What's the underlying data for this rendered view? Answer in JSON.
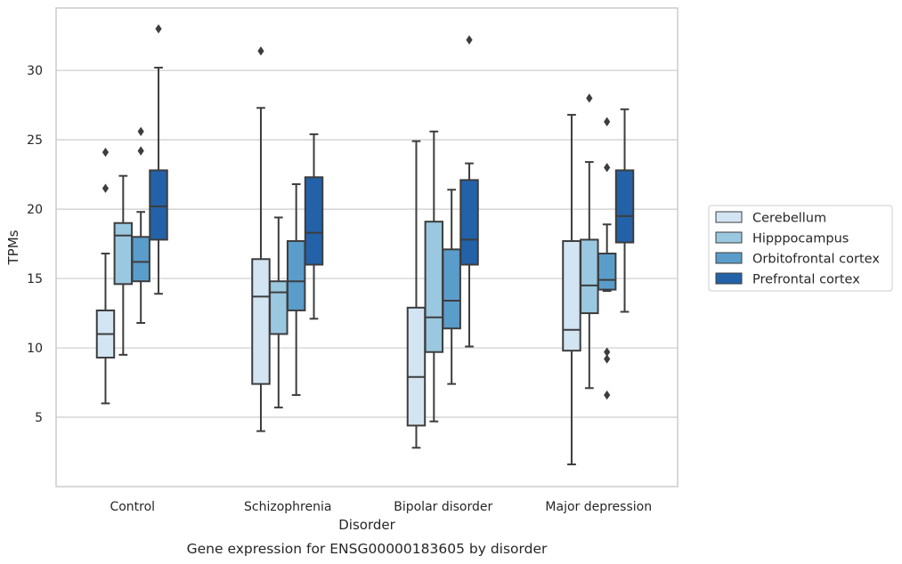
{
  "chart_data": {
    "type": "box",
    "xlabel": "Disorder",
    "ylabel": "TPMs",
    "caption": "Gene expression for ENSG00000183605 by disorder",
    "categories": [
      "Control",
      "Schizophrenia",
      "Bipolar disorder",
      "Major depression"
    ],
    "yticks": [
      5,
      10,
      15,
      20,
      25,
      30
    ],
    "ylim": [
      0,
      34.5
    ],
    "grid": "horizontal",
    "legend_position": "right",
    "series": [
      {
        "name": "Cerebellum",
        "color": "#d3e4f3",
        "boxes": [
          {
            "whisker_low": 6.0,
            "q1": 9.3,
            "median": 11.0,
            "q3": 12.7,
            "whisker_high": 16.8,
            "outliers": [
              21.5,
              24.1
            ]
          },
          {
            "whisker_low": 4.0,
            "q1": 7.4,
            "median": 13.7,
            "q3": 16.4,
            "whisker_high": 27.3,
            "outliers": [
              31.4
            ]
          },
          {
            "whisker_low": 2.8,
            "q1": 4.4,
            "median": 7.9,
            "q3": 12.9,
            "whisker_high": 24.9,
            "outliers": []
          },
          {
            "whisker_low": 1.6,
            "q1": 9.8,
            "median": 11.3,
            "q3": 17.7,
            "whisker_high": 26.8,
            "outliers": []
          }
        ]
      },
      {
        "name": "Hipppocampus",
        "color": "#9ac8e0",
        "boxes": [
          {
            "whisker_low": 9.5,
            "q1": 14.6,
            "median": 18.1,
            "q3": 19.0,
            "whisker_high": 22.4,
            "outliers": []
          },
          {
            "whisker_low": 5.7,
            "q1": 11.0,
            "median": 14.0,
            "q3": 14.8,
            "whisker_high": 19.4,
            "outliers": []
          },
          {
            "whisker_low": 4.7,
            "q1": 9.7,
            "median": 12.2,
            "q3": 19.1,
            "whisker_high": 25.6,
            "outliers": []
          },
          {
            "whisker_low": 7.1,
            "q1": 12.5,
            "median": 14.5,
            "q3": 17.8,
            "whisker_high": 23.4,
            "outliers": [
              28.0
            ]
          }
        ]
      },
      {
        "name": "Orbitofrontal cortex",
        "color": "#5a9dcb",
        "boxes": [
          {
            "whisker_low": 11.8,
            "q1": 14.8,
            "median": 16.2,
            "q3": 18.0,
            "whisker_high": 19.8,
            "outliers": [
              24.2,
              25.6
            ]
          },
          {
            "whisker_low": 6.6,
            "q1": 12.7,
            "median": 14.8,
            "q3": 17.7,
            "whisker_high": 21.8,
            "outliers": []
          },
          {
            "whisker_low": 7.4,
            "q1": 11.4,
            "median": 13.4,
            "q3": 17.1,
            "whisker_high": 21.4,
            "outliers": []
          },
          {
            "whisker_low": 14.1,
            "q1": 14.2,
            "median": 14.9,
            "q3": 16.8,
            "whisker_high": 18.9,
            "outliers": [
              6.6,
              9.2,
              9.7,
              23.0,
              26.3
            ]
          }
        ]
      },
      {
        "name": "Prefrontal cortex",
        "color": "#2362a8",
        "boxes": [
          {
            "whisker_low": 13.9,
            "q1": 17.8,
            "median": 20.2,
            "q3": 22.8,
            "whisker_high": 30.2,
            "outliers": [
              33.0
            ]
          },
          {
            "whisker_low": 12.1,
            "q1": 16.0,
            "median": 18.3,
            "q3": 22.3,
            "whisker_high": 25.4,
            "outliers": []
          },
          {
            "whisker_low": 10.1,
            "q1": 16.0,
            "median": 17.8,
            "q3": 22.1,
            "whisker_high": 23.3,
            "outliers": [
              32.2
            ]
          },
          {
            "whisker_low": 12.6,
            "q1": 17.6,
            "median": 19.5,
            "q3": 22.8,
            "whisker_high": 27.2,
            "outliers": []
          }
        ]
      }
    ]
  }
}
